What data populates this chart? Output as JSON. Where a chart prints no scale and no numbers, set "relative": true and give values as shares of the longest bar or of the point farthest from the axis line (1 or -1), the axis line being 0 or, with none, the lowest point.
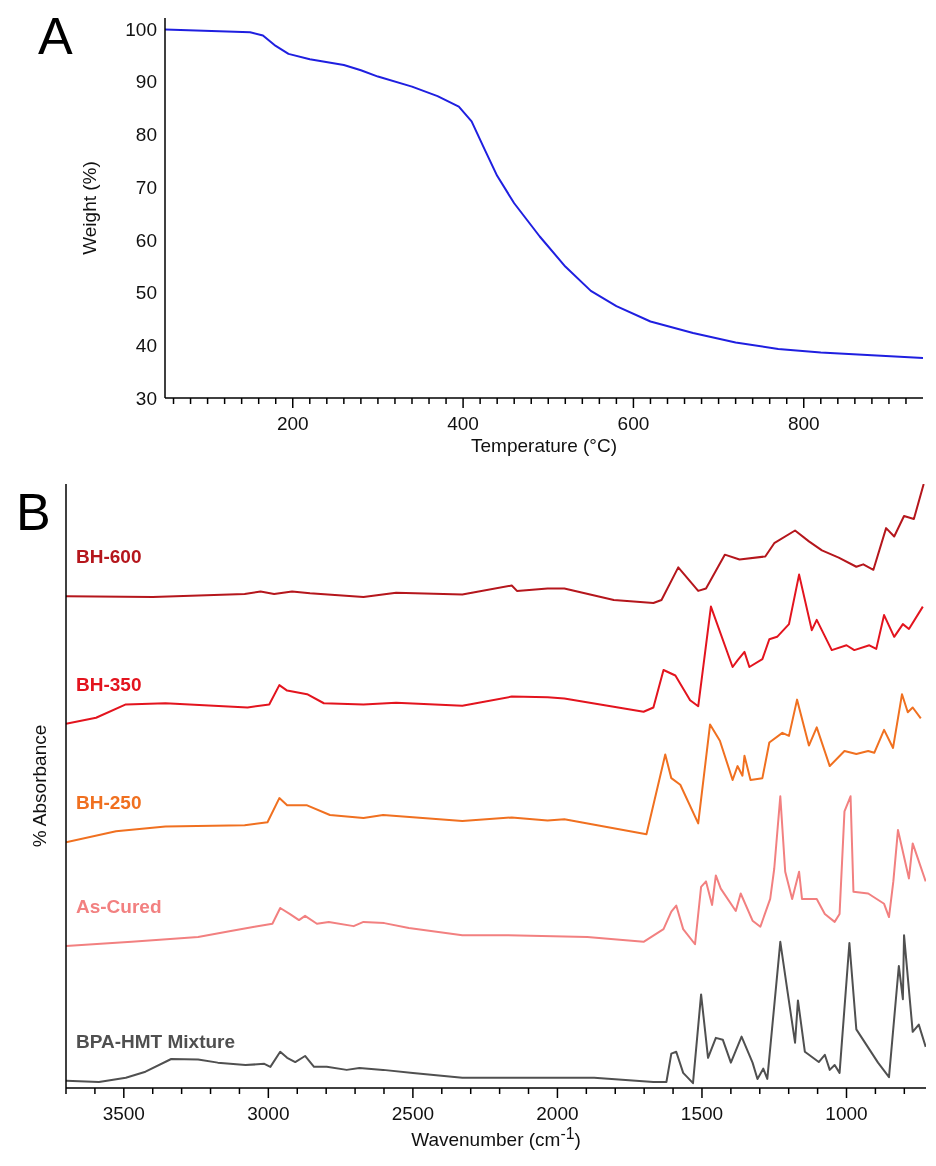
{
  "chart_data": [
    {
      "type": "line",
      "title": "A",
      "xlabel": "Temperature (°C)",
      "ylabel": "Weight (%)",
      "color": "#1f1fe0",
      "x": [
        50,
        150,
        165,
        180,
        195,
        220,
        260,
        280,
        300,
        340,
        370,
        395,
        410,
        425,
        440,
        460,
        490,
        520,
        550,
        580,
        620,
        670,
        720,
        770,
        820,
        880,
        940
      ],
      "values": [
        99.8,
        99.3,
        98.7,
        96.7,
        95.2,
        94.2,
        93.1,
        92.1,
        90.9,
        89,
        87.2,
        85.2,
        82.4,
        77.2,
        72.1,
        66.9,
        60.6,
        54.9,
        50.3,
        47.4,
        44.5,
        42.3,
        40.5,
        39.3,
        38.6,
        38.1,
        37.6
      ],
      "xlim": [
        50,
        940
      ],
      "ylim": [
        30,
        102
      ],
      "yticks": [
        30,
        40,
        50,
        60,
        70,
        80,
        90,
        100
      ],
      "xticks": [
        {
          "value": 60,
          "label": null
        },
        {
          "value": 80,
          "label": null
        },
        {
          "value": 100,
          "label": null
        },
        {
          "value": 120,
          "label": null
        },
        {
          "value": 140,
          "label": null
        },
        {
          "value": 160,
          "label": null
        },
        {
          "value": 180,
          "label": null
        },
        200,
        {
          "value": 220,
          "label": null
        },
        {
          "value": 240,
          "label": null
        },
        {
          "value": 260,
          "label": null
        },
        {
          "value": 280,
          "label": null
        },
        {
          "value": 300,
          "label": null
        },
        {
          "value": 320,
          "label": null
        },
        {
          "value": 340,
          "label": null
        },
        {
          "value": 360,
          "label": null
        },
        {
          "value": 380,
          "label": null
        },
        400,
        {
          "value": 420,
          "label": null
        },
        {
          "value": 440,
          "label": null
        },
        {
          "value": 460,
          "label": null
        },
        {
          "value": 480,
          "label": null
        },
        {
          "value": 500,
          "label": null
        },
        {
          "value": 520,
          "label": null
        },
        {
          "value": 540,
          "label": null
        },
        {
          "value": 560,
          "label": null
        },
        {
          "value": 580,
          "label": null
        },
        600,
        {
          "value": 620,
          "label": null
        },
        {
          "value": 640,
          "label": null
        },
        {
          "value": 660,
          "label": null
        },
        {
          "value": 680,
          "label": null
        },
        {
          "value": 700,
          "label": null
        },
        {
          "value": 720,
          "label": null
        },
        {
          "value": 740,
          "label": null
        },
        {
          "value": 760,
          "label": null
        },
        {
          "value": 780,
          "label": null
        },
        800,
        {
          "value": 820,
          "label": null
        },
        {
          "value": 840,
          "label": null
        },
        {
          "value": 860,
          "label": null
        },
        {
          "value": 880,
          "label": null
        },
        {
          "value": 900,
          "label": null
        },
        {
          "value": 920,
          "label": null
        }
      ]
    },
    {
      "type": "line",
      "title": "B",
      "xlabel": "Wavenumber (cm$^{-1}$)",
      "ylabel": "% Absorbance",
      "relative": true,
      "xlim": [
        3700,
        725
      ],
      "xticks": [
        {
          "value": 3700,
          "label": null
        },
        {
          "value": 3600,
          "label": null
        },
        3500,
        {
          "value": 3400,
          "label": null
        },
        {
          "value": 3300,
          "label": null
        },
        {
          "value": 3200,
          "label": null
        },
        {
          "value": 3100,
          "label": null
        },
        3000,
        {
          "value": 2900,
          "label": null
        },
        {
          "value": 2800,
          "label": null
        },
        {
          "value": 2700,
          "label": null
        },
        {
          "value": 2600,
          "label": null
        },
        2500,
        {
          "value": 2400,
          "label": null
        },
        {
          "value": 2300,
          "label": null
        },
        {
          "value": 2200,
          "label": null
        },
        {
          "value": 2100,
          "label": null
        },
        2000,
        {
          "value": 1900,
          "label": null
        },
        {
          "value": 1800,
          "label": null
        },
        {
          "value": 1700,
          "label": null
        },
        {
          "value": 1600,
          "label": null
        },
        1500,
        {
          "value": 1400,
          "label": null
        },
        {
          "value": 1300,
          "label": null
        },
        {
          "value": 1200,
          "label": null
        },
        {
          "value": 1100,
          "label": null
        },
        1000,
        {
          "value": 900,
          "label": null
        },
        {
          "value": 800,
          "label": null
        }
      ],
      "series": [
        {
          "name": "BH-600",
          "color": "#b5161c",
          "x": [
            3700,
            3400,
            3082,
            3027,
            2980,
            2918,
            2856,
            2671,
            2558,
            2329,
            2158,
            2140,
            2034,
            1976,
            1805,
            1668,
            1640,
            1582,
            1513,
            1486,
            1421,
            1370,
            1281,
            1250,
            1178,
            1130,
            1085,
            1027,
            966,
            942,
            907,
            863,
            835,
            801,
            767,
            733
          ],
          "values": [
            0.814,
            0.813,
            0.818,
            0.822,
            0.818,
            0.822,
            0.819,
            0.813,
            0.82,
            0.817,
            0.832,
            0.823,
            0.827,
            0.827,
            0.808,
            0.803,
            0.808,
            0.862,
            0.823,
            0.827,
            0.883,
            0.875,
            0.88,
            0.902,
            0.923,
            0.905,
            0.89,
            0.878,
            0.863,
            0.867,
            0.858,
            0.927,
            0.913,
            0.947,
            0.942,
            1
          ]
        },
        {
          "name": "BH-350",
          "color": "#e3141e",
          "x": [
            3700,
            3596,
            3493,
            3356,
            3072,
            2997,
            2962,
            2935,
            2866,
            2808,
            2671,
            2558,
            2329,
            2158,
            2034,
            1976,
            1702,
            1668,
            1633,
            1592,
            1541,
            1513,
            1469,
            1394,
            1377,
            1353,
            1336,
            1291,
            1267,
            1240,
            1199,
            1164,
            1120,
            1103,
            1051,
            1000,
            973,
            921,
            897,
            870,
            835,
            805,
            784,
            736
          ],
          "values": [
            0.603,
            0.613,
            0.635,
            0.637,
            0.63,
            0.635,
            0.667,
            0.658,
            0.652,
            0.637,
            0.635,
            0.638,
            0.633,
            0.648,
            0.647,
            0.645,
            0.623,
            0.63,
            0.692,
            0.683,
            0.642,
            0.632,
            0.797,
            0.697,
            0.708,
            0.722,
            0.697,
            0.71,
            0.743,
            0.747,
            0.768,
            0.85,
            0.758,
            0.775,
            0.725,
            0.733,
            0.725,
            0.733,
            0.727,
            0.783,
            0.747,
            0.768,
            0.76,
            0.797
          ]
        },
        {
          "name": "BH-250",
          "color": "#f07020",
          "x": [
            3700,
            3527,
            3356,
            3082,
            3003,
            2962,
            2935,
            2866,
            2787,
            2671,
            2603,
            2329,
            2158,
            2034,
            1976,
            1692,
            1627,
            1606,
            1575,
            1513,
            1472,
            1438,
            1394,
            1377,
            1360,
            1353,
            1332,
            1291,
            1267,
            1222,
            1199,
            1171,
            1130,
            1103,
            1058,
            1007,
            966,
            925,
            904,
            870,
            839,
            808,
            788,
            771,
            743
          ],
          "values": [
            0.407,
            0.425,
            0.433,
            0.435,
            0.44,
            0.48,
            0.468,
            0.468,
            0.452,
            0.447,
            0.452,
            0.442,
            0.448,
            0.443,
            0.445,
            0.42,
            0.552,
            0.513,
            0.502,
            0.438,
            0.602,
            0.575,
            0.51,
            0.533,
            0.517,
            0.55,
            0.51,
            0.513,
            0.572,
            0.588,
            0.583,
            0.643,
            0.567,
            0.597,
            0.533,
            0.558,
            0.553,
            0.558,
            0.555,
            0.593,
            0.563,
            0.652,
            0.622,
            0.63,
            0.612
          ]
        },
        {
          "name": "As-Cured",
          "color": "#f28080",
          "x": [
            3700,
            3473,
            3243,
            3130,
            3048,
            2986,
            2959,
            2925,
            2894,
            2873,
            2832,
            2791,
            2705,
            2671,
            2599,
            2514,
            2329,
            2171,
            1897,
            1702,
            1633,
            1606,
            1589,
            1565,
            1524,
            1503,
            1486,
            1465,
            1452,
            1435,
            1383,
            1366,
            1325,
            1298,
            1264,
            1250,
            1229,
            1212,
            1188,
            1164,
            1154,
            1103,
            1075,
            1041,
            1024,
            1007,
            986,
            976,
            925,
            870,
            853,
            838,
            822,
            784,
            771,
            726
          ],
          "values": [
            0.235,
            0.242,
            0.25,
            0.26,
            0.267,
            0.272,
            0.298,
            0.288,
            0.278,
            0.285,
            0.272,
            0.275,
            0.268,
            0.275,
            0.273,
            0.265,
            0.253,
            0.253,
            0.25,
            0.242,
            0.263,
            0.292,
            0.302,
            0.263,
            0.238,
            0.333,
            0.342,
            0.303,
            0.352,
            0.33,
            0.293,
            0.322,
            0.277,
            0.267,
            0.313,
            0.363,
            0.483,
            0.358,
            0.313,
            0.358,
            0.313,
            0.313,
            0.288,
            0.275,
            0.288,
            0.458,
            0.483,
            0.325,
            0.322,
            0.305,
            0.283,
            0.342,
            0.427,
            0.347,
            0.405,
            0.342
          ]
        },
        {
          "name": "BPA-HMT Mixture",
          "color": "#505050",
          "x": [
            3700,
            3586,
            3493,
            3425,
            3336,
            3243,
            3175,
            3079,
            3014,
            2993,
            2959,
            2935,
            2907,
            2873,
            2842,
            2798,
            2729,
            2685,
            2603,
            2500,
            2329,
            2123,
            1873,
            1668,
            1623,
            1606,
            1589,
            1565,
            1531,
            1503,
            1479,
            1452,
            1428,
            1400,
            1363,
            1325,
            1308,
            1288,
            1274,
            1229,
            1205,
            1178,
            1168,
            1144,
            1096,
            1075,
            1058,
            1041,
            1024,
            990,
            966,
            891,
            853,
            819,
            805,
            801,
            771,
            750,
            726
          ],
          "values": [
            0.012,
            0.01,
            0.017,
            0.027,
            0.048,
            0.047,
            0.042,
            0.038,
            0.04,
            0.035,
            0.06,
            0.05,
            0.043,
            0.053,
            0.035,
            0.035,
            0.03,
            0.033,
            0.03,
            0.025,
            0.017,
            0.017,
            0.017,
            0.01,
            0.01,
            0.057,
            0.06,
            0.025,
            0.008,
            0.155,
            0.05,
            0.083,
            0.08,
            0.042,
            0.085,
            0.042,
            0.015,
            0.032,
            0.015,
            0.242,
            0.163,
            0.075,
            0.145,
            0.06,
            0.043,
            0.055,
            0.03,
            0.038,
            0.025,
            0.24,
            0.097,
            0.042,
            0.018,
            0.202,
            0.147,
            0.253,
            0.093,
            0.105,
            0.068
          ]
        }
      ]
    }
  ]
}
